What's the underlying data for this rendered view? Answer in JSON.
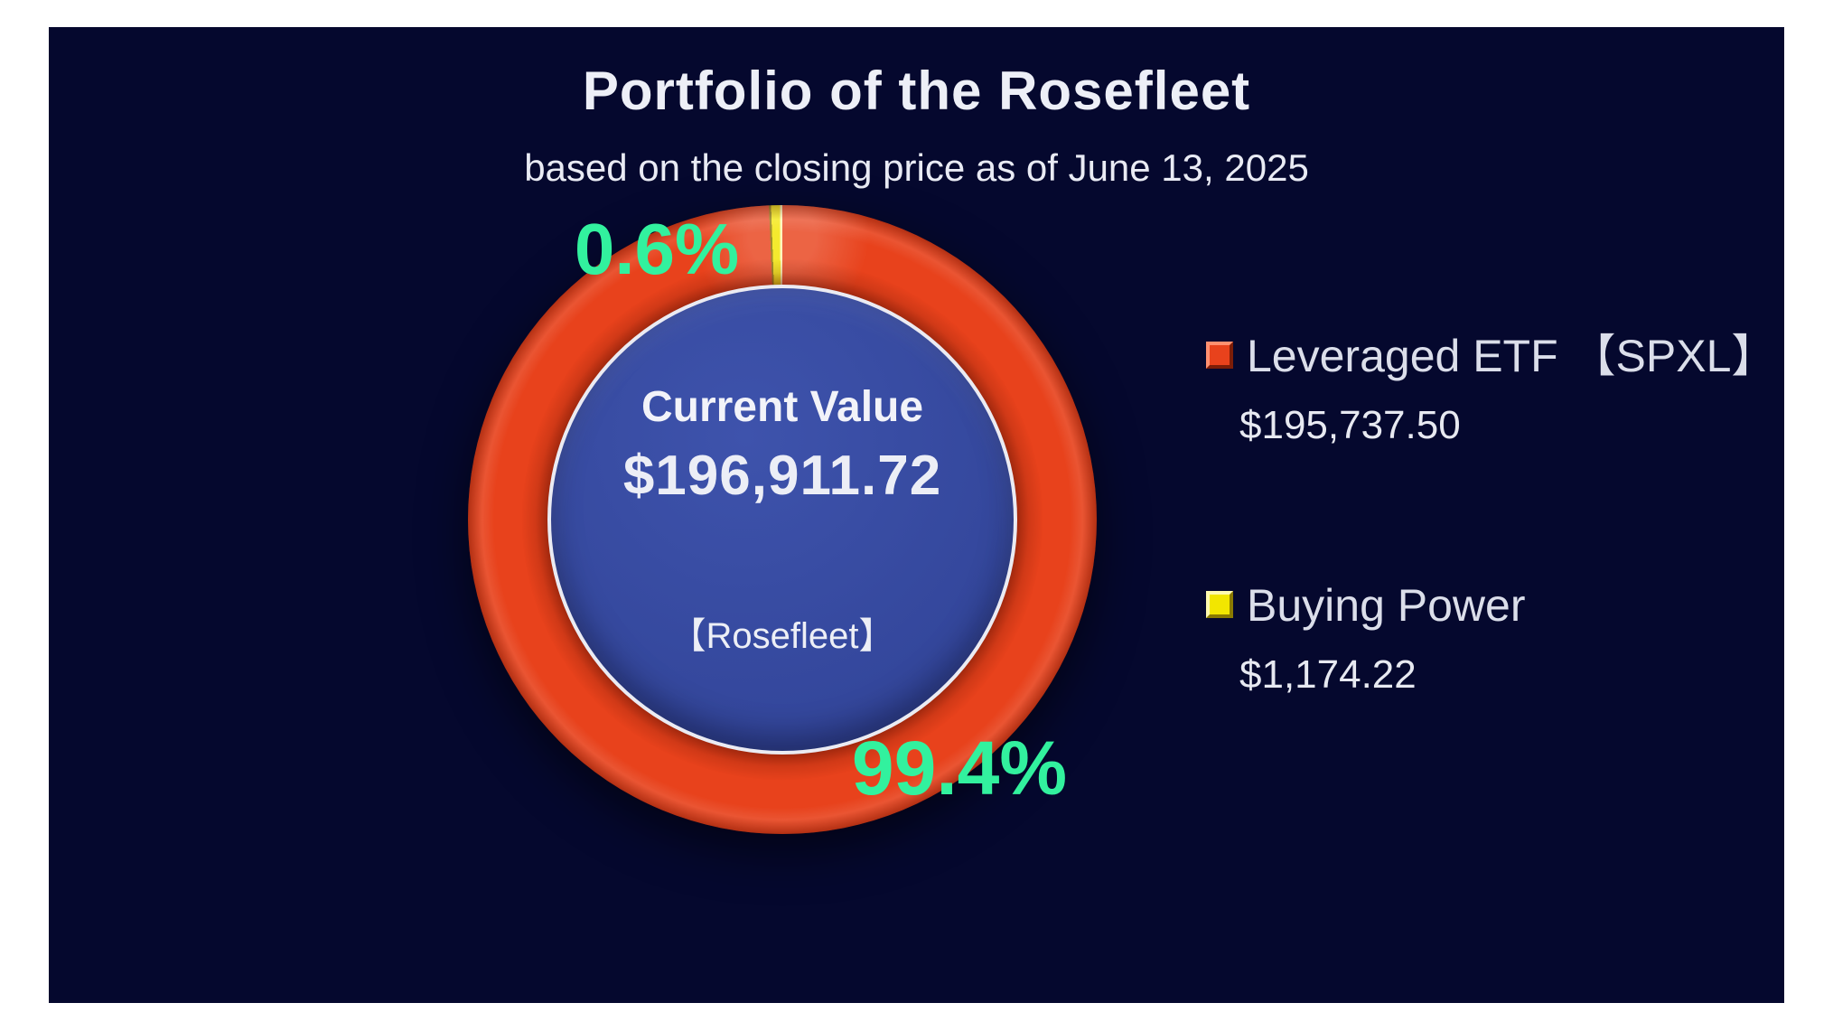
{
  "page": {
    "background": "#ffffff",
    "panel_color": "#05082e"
  },
  "header": {
    "title": "Portfolio of the Rosefleet",
    "subtitle": "based on the closing price as of June 13, 2025"
  },
  "chart_data": {
    "type": "pie",
    "style": "donut",
    "title": "Portfolio of the Rosefleet",
    "subtitle": "based on the closing price as of June 13, 2025",
    "start_angle_deg": 0,
    "direction": "clockwise",
    "segments": [
      {
        "label": "Leveraged ETF 【SPXL】",
        "value_usd": 195737.5,
        "display_value": "$195,737.50",
        "percent": 99.4,
        "percent_label": "99.4%",
        "color": "#e8421c"
      },
      {
        "label": "Buying Power",
        "value_usd": 1174.22,
        "display_value": "$1,174.22",
        "percent": 0.6,
        "percent_label": "0.6%",
        "color": "#f2e600"
      }
    ],
    "center_text": {
      "line1": "Current Value",
      "line2": "$196,911.72",
      "line3": "【Rosefleet】"
    },
    "total_usd": 196911.72,
    "percent_label_color": "#32f19e",
    "center_fill": "#34479c",
    "inner_ring_color": "#ebebf2",
    "legend_position": "right",
    "legend": [
      {
        "swatch_color": "#e8421c",
        "label": "Leveraged ETF 【SPXL】",
        "value": "$195,737.50"
      },
      {
        "swatch_color": "#f2e600",
        "label": "Buying Power",
        "value": "$1,174.22"
      }
    ]
  }
}
